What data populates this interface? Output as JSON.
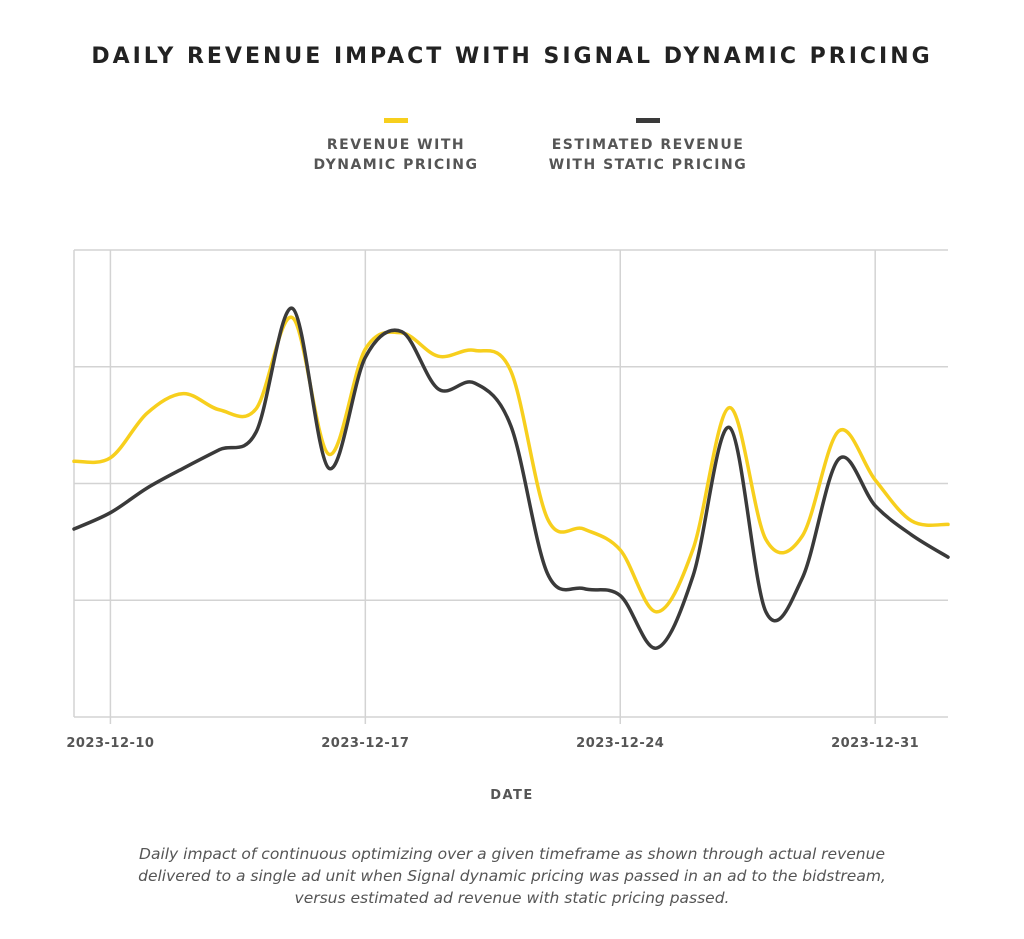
{
  "chart_data": {
    "type": "line",
    "title": "DAILY REVENUE IMPACT WITH SIGNAL DYNAMIC PRICING",
    "xlabel": "DATE",
    "ylabel": "",
    "x_tick_labels": [
      "2023-12-10",
      "2023-12-17",
      "2023-12-24",
      "2023-12-31"
    ],
    "x_tick_values": [
      "2023-12-10",
      "2023-12-17",
      "2023-12-24",
      "2023-12-31"
    ],
    "xlim": [
      "2023-12-09",
      "2024-01-02"
    ],
    "ylim": [
      0,
      4
    ],
    "y_gridlines": [
      0,
      1,
      2,
      3,
      4
    ],
    "grid": true,
    "legend_position": "top-center",
    "colors": {
      "dynamic": "#F7CF1D",
      "static": "#3A3A3A",
      "grid": "#D3D3D3"
    },
    "series": [
      {
        "name": "REVENUE WITH DYNAMIC PRICING",
        "color": "#F7CF1D",
        "points": [
          [
            "2023-12-09",
            2.19
          ],
          [
            "2023-12-10",
            2.22
          ],
          [
            "2023-12-11",
            2.6
          ],
          [
            "2023-12-12",
            2.77
          ],
          [
            "2023-12-13",
            2.63
          ],
          [
            "2023-12-14",
            2.64
          ],
          [
            "2023-12-15",
            3.42
          ],
          [
            "2023-12-16",
            2.25
          ],
          [
            "2023-12-17",
            3.15
          ],
          [
            "2023-12-18",
            3.29
          ],
          [
            "2023-12-19",
            3.09
          ],
          [
            "2023-12-20",
            3.14
          ],
          [
            "2023-12-21",
            2.96
          ],
          [
            "2023-12-22",
            1.7
          ],
          [
            "2023-12-23",
            1.61
          ],
          [
            "2023-12-24",
            1.43
          ],
          [
            "2023-12-25",
            0.9
          ],
          [
            "2023-12-26",
            1.44
          ],
          [
            "2023-12-27",
            2.65
          ],
          [
            "2023-12-28",
            1.52
          ],
          [
            "2023-12-29",
            1.55
          ],
          [
            "2023-12-30",
            2.45
          ],
          [
            "2023-12-31",
            2.03
          ],
          [
            "2024-01-01",
            1.68
          ],
          [
            "2024-01-02",
            1.65
          ]
        ]
      },
      {
        "name": "ESTIMATED REVENUE WITH STATIC PRICING",
        "color": "#3A3A3A",
        "points": [
          [
            "2023-12-09",
            1.61
          ],
          [
            "2023-12-10",
            1.75
          ],
          [
            "2023-12-11",
            1.96
          ],
          [
            "2023-12-12",
            2.13
          ],
          [
            "2023-12-13",
            2.29
          ],
          [
            "2023-12-14",
            2.44
          ],
          [
            "2023-12-15",
            3.5
          ],
          [
            "2023-12-16",
            2.13
          ],
          [
            "2023-12-17",
            3.08
          ],
          [
            "2023-12-18",
            3.3
          ],
          [
            "2023-12-19",
            2.81
          ],
          [
            "2023-12-20",
            2.86
          ],
          [
            "2023-12-21",
            2.49
          ],
          [
            "2023-12-22",
            1.23
          ],
          [
            "2023-12-23",
            1.1
          ],
          [
            "2023-12-24",
            1.04
          ],
          [
            "2023-12-25",
            0.59
          ],
          [
            "2023-12-26",
            1.21
          ],
          [
            "2023-12-27",
            2.48
          ],
          [
            "2023-12-28",
            0.9
          ],
          [
            "2023-12-29",
            1.19
          ],
          [
            "2023-12-30",
            2.21
          ],
          [
            "2023-12-31",
            1.81
          ],
          [
            "2024-01-01",
            1.56
          ],
          [
            "2024-01-02",
            1.37
          ]
        ]
      }
    ]
  },
  "legend": {
    "items": [
      {
        "label": "REVENUE WITH DYNAMIC PRICING",
        "color": "#F7CF1D"
      },
      {
        "label": "ESTIMATED REVENUE WITH STATIC PRICING",
        "color": "#3A3A3A"
      }
    ]
  },
  "caption": "Daily impact of continuous optimizing over a given timeframe as shown through actual revenue delivered to a single ad unit when Signal dynamic pricing was passed in an ad to the bidstream, versus estimated ad revenue with static pricing passed."
}
